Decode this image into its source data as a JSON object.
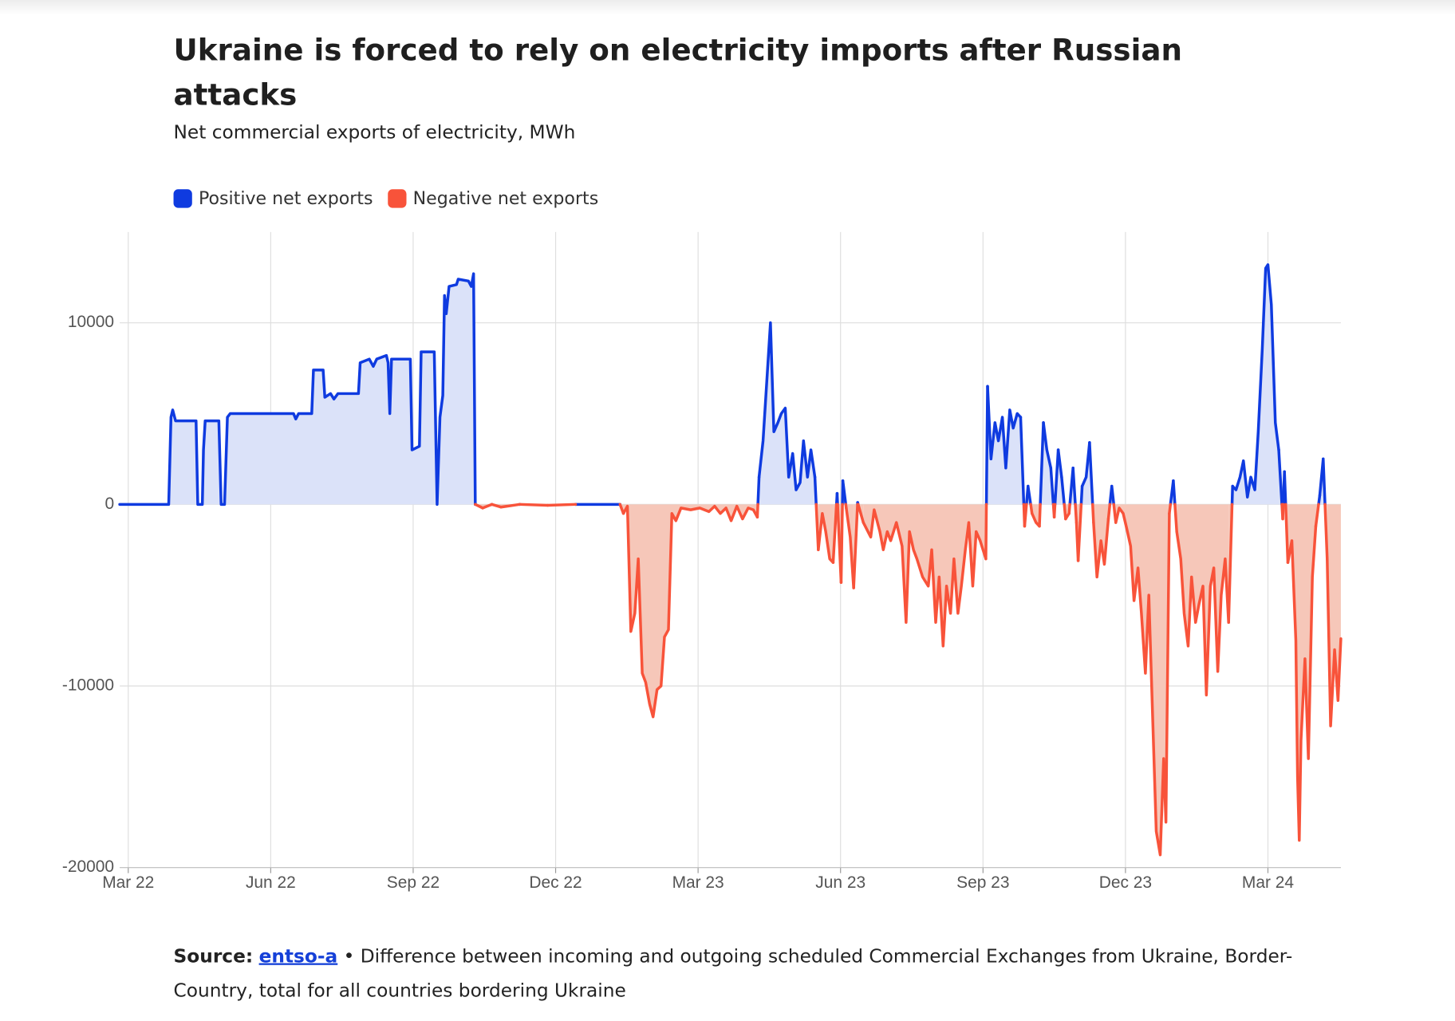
{
  "chart_data": {
    "type": "area",
    "title": "Ukraine is forced to rely on electricity imports after Russian attacks",
    "subtitle": "Net commercial exports of electricity, MWh",
    "source_label": "Source:",
    "source_link": "entso-a",
    "note": "• Difference between incoming and outgoing scheduled Commercial Exchanges from Ukraine, Border-Country, total for all countries bordering Ukraine",
    "xlim": [
      2022.152,
      2024.295
    ],
    "xticks": [
      {
        "value": 2022.167,
        "label": "Mar 22"
      },
      {
        "value": 2022.417,
        "label": "Jun 22"
      },
      {
        "value": 2022.667,
        "label": "Sep 22"
      },
      {
        "value": 2022.917,
        "label": "Dec 22"
      },
      {
        "value": 2023.167,
        "label": "Mar 23"
      },
      {
        "value": 2023.417,
        "label": "Jun 23"
      },
      {
        "value": 2023.667,
        "label": "Sep 23"
      },
      {
        "value": 2023.917,
        "label": "Dec 23"
      },
      {
        "value": 2024.167,
        "label": "Mar 24"
      }
    ],
    "ylim": [
      -20000,
      15000
    ],
    "yticks": [
      -20000,
      -10000,
      0,
      10000
    ],
    "grid": true,
    "legend": "top-left",
    "x": [
      2022.152,
      2022.238,
      2022.242,
      2022.245,
      2022.25,
      2022.286,
      2022.289,
      2022.297,
      2022.299,
      2022.302,
      2022.326,
      2022.33,
      2022.336,
      2022.341,
      2022.346,
      2022.457,
      2022.461,
      2022.466,
      2022.489,
      2022.492,
      2022.509,
      2022.512,
      2022.522,
      2022.528,
      2022.535,
      2022.571,
      2022.574,
      2022.59,
      2022.597,
      2022.603,
      2022.62,
      2022.623,
      2022.626,
      2022.629,
      2022.662,
      2022.665,
      2022.678,
      2022.681,
      2022.704,
      2022.709,
      2022.714,
      2022.719,
      2022.722,
      2022.725,
      2022.73,
      2022.743,
      2022.746,
      2022.764,
      2022.769,
      2022.773,
      2022.776,
      2022.789,
      2022.805,
      2022.821,
      2022.854,
      2022.903,
      2022.952,
      2023.03,
      2023.036,
      2023.043,
      2023.049,
      2023.056,
      2023.062,
      2023.069,
      2023.075,
      2023.082,
      2023.088,
      2023.095,
      2023.102,
      2023.108,
      2023.115,
      2023.121,
      2023.128,
      2023.137,
      2023.154,
      2023.17,
      2023.186,
      2023.196,
      2023.206,
      2023.216,
      2023.225,
      2023.235,
      2023.245,
      2023.255,
      2023.264,
      2023.271,
      2023.274,
      2023.281,
      2023.287,
      2023.294,
      2023.3,
      2023.307,
      2023.313,
      2023.32,
      2023.326,
      2023.333,
      2023.339,
      2023.346,
      2023.352,
      2023.359,
      2023.365,
      2023.372,
      2023.378,
      2023.385,
      2023.391,
      2023.398,
      2023.404,
      2023.411,
      2023.418,
      2023.421,
      2023.427,
      2023.434,
      2023.44,
      2023.447,
      2023.457,
      2023.47,
      2023.476,
      2023.486,
      2023.492,
      2023.499,
      2023.505,
      2023.515,
      2023.525,
      2023.532,
      2023.538,
      2023.545,
      2023.551,
      2023.561,
      2023.571,
      2023.577,
      2023.584,
      2023.59,
      2023.597,
      2023.603,
      2023.61,
      2023.616,
      2023.623,
      2023.629,
      2023.636,
      2023.642,
      2023.649,
      2023.655,
      2023.662,
      2023.672,
      2023.675,
      2023.681,
      2023.688,
      2023.694,
      2023.701,
      2023.707,
      2023.714,
      2023.72,
      2023.727,
      2023.733,
      2023.74,
      2023.746,
      2023.753,
      2023.76,
      2023.766,
      2023.773,
      2023.779,
      2023.786,
      2023.792,
      2023.799,
      2023.805,
      2023.812,
      2023.818,
      2023.825,
      2023.831,
      2023.834,
      2023.841,
      2023.848,
      2023.854,
      2023.861,
      2023.867,
      2023.874,
      2023.88,
      2023.887,
      2023.893,
      2023.9,
      2023.906,
      2023.913,
      2023.919,
      2023.926,
      2023.932,
      2023.939,
      2023.945,
      2023.952,
      2023.958,
      2023.965,
      2023.971,
      2023.978,
      2023.984,
      2023.988,
      2023.994,
      2024.001,
      2024.007,
      2024.014,
      2024.02,
      2024.027,
      2024.033,
      2024.04,
      2024.046,
      2024.053,
      2024.059,
      2024.066,
      2024.072,
      2024.079,
      2024.085,
      2024.092,
      2024.098,
      2024.105,
      2024.111,
      2024.118,
      2024.124,
      2024.131,
      2024.137,
      2024.144,
      2024.15,
      2024.157,
      2024.163,
      2024.167,
      2024.173,
      2024.18,
      2024.186,
      2024.193,
      2024.196,
      2024.202,
      2024.209,
      2024.216,
      2024.219,
      2024.222,
      2024.225,
      2024.232,
      2024.238,
      2024.245,
      2024.251,
      2024.258,
      2024.264,
      2024.271,
      2024.277,
      2024.284,
      2024.29,
      2024.295
    ],
    "series": [
      {
        "name": "Positive net exports",
        "color": "#0f3be0",
        "fill": "#dbe2f9",
        "values": [
          0,
          0,
          4800,
          5200,
          4600,
          4600,
          0,
          0,
          3000,
          4600,
          4600,
          0,
          0,
          4800,
          5000,
          5000,
          4700,
          5000,
          5000,
          7400,
          7400,
          5900,
          6100,
          5800,
          6100,
          6100,
          7800,
          8000,
          7600,
          8000,
          8200,
          7800,
          5000,
          8000,
          8000,
          3000,
          3200,
          8400,
          8400,
          0,
          4800,
          6000,
          11500,
          10500,
          12000,
          12100,
          12400,
          12300,
          12000,
          12700,
          0,
          null,
          0,
          null,
          0,
          null,
          0,
          0,
          null,
          null,
          null,
          null,
          null,
          null,
          null,
          null,
          null,
          null,
          null,
          null,
          null,
          null,
          null,
          null,
          null,
          null,
          null,
          null,
          null,
          null,
          null,
          null,
          null,
          null,
          null,
          null,
          1500,
          3500,
          6500,
          10000,
          4000,
          4500,
          5000,
          5300,
          1500,
          2800,
          800,
          1200,
          3500,
          1500,
          3000,
          1500,
          null,
          null,
          null,
          null,
          null,
          600,
          null,
          1300,
          null,
          null,
          null,
          100,
          null,
          null,
          null,
          null,
          null,
          null,
          null,
          null,
          null,
          null,
          null,
          null,
          null,
          null,
          null,
          null,
          null,
          null,
          null,
          null,
          null,
          null,
          null,
          null,
          null,
          null,
          null,
          null,
          null,
          null,
          6500,
          2500,
          4500,
          3500,
          4800,
          2000,
          5200,
          4200,
          5000,
          4800,
          null,
          1000,
          null,
          null,
          null,
          4500,
          3000,
          2000,
          null,
          3000,
          1500,
          null,
          null,
          2000,
          null,
          null,
          1000,
          1500,
          3400,
          null,
          null,
          null,
          null,
          null,
          1000,
          null,
          null,
          null,
          null,
          null,
          null,
          null,
          null,
          null,
          null,
          null,
          null,
          null,
          null,
          null,
          null,
          1300,
          null,
          null,
          null,
          null,
          null,
          null,
          null,
          null,
          null,
          null,
          null,
          null,
          null,
          null,
          null,
          1000,
          800,
          1500,
          2400,
          400,
          1500,
          800,
          4000,
          8500,
          13000,
          13200,
          11000,
          4500,
          3000,
          null,
          1800,
          null,
          null,
          null,
          null,
          null,
          null,
          null,
          null,
          null,
          null,
          500,
          2500,
          null,
          null,
          null,
          null,
          null
        ]
      },
      {
        "name": "Negative net exports",
        "color": "#f8533a",
        "fill": "#f6c7b9",
        "values": [
          null,
          null,
          null,
          null,
          null,
          null,
          null,
          null,
          null,
          null,
          null,
          null,
          null,
          null,
          null,
          null,
          null,
          null,
          null,
          null,
          null,
          null,
          null,
          null,
          null,
          null,
          null,
          null,
          null,
          null,
          null,
          null,
          null,
          null,
          null,
          null,
          null,
          null,
          null,
          null,
          null,
          null,
          null,
          null,
          null,
          null,
          null,
          null,
          null,
          null,
          null,
          -200,
          null,
          -150,
          null,
          -50,
          null,
          null,
          -500,
          -100,
          -7000,
          -6000,
          -3000,
          -9300,
          -9800,
          -11000,
          -11700,
          -10200,
          -10000,
          -7300,
          -6900,
          -500,
          -900,
          -200,
          -300,
          -200,
          -400,
          -100,
          -500,
          -200,
          -900,
          -100,
          -800,
          -200,
          -300,
          -700,
          null,
          null,
          null,
          null,
          null,
          null,
          null,
          null,
          null,
          null,
          null,
          null,
          null,
          null,
          null,
          null,
          -2500,
          -500,
          -1500,
          -3000,
          -3200,
          null,
          -4300,
          null,
          -200,
          -1800,
          -4600,
          null,
          -1000,
          -1800,
          -300,
          -1500,
          -2500,
          -1500,
          -2000,
          -1000,
          -2300,
          -6500,
          -1500,
          -2500,
          -3000,
          -4000,
          -4500,
          -2500,
          -6500,
          -4000,
          -7800,
          -4500,
          -6000,
          -3000,
          -6000,
          -4500,
          -2500,
          -1000,
          -4500,
          -1500,
          -2000,
          -3000,
          null,
          null,
          null,
          null,
          null,
          null,
          null,
          null,
          null,
          null,
          -1200,
          null,
          -500,
          -1000,
          -1200,
          null,
          null,
          null,
          -700,
          null,
          null,
          -800,
          -500,
          null,
          -1000,
          -3100,
          null,
          null,
          null,
          -1000,
          -4000,
          -2000,
          -3300,
          -800,
          null,
          -1000,
          -200,
          -500,
          -1300,
          -2300,
          -5300,
          -3500,
          -6000,
          -9300,
          -5000,
          -12000,
          -18000,
          -19300,
          -14000,
          -17500,
          -500,
          null,
          -1500,
          -3000,
          -6000,
          -7800,
          -4000,
          -6500,
          -5500,
          -4500,
          -10500,
          -4500,
          -3500,
          -9200,
          -5000,
          -3000,
          -6500,
          null,
          null,
          null,
          null,
          null,
          null,
          null,
          null,
          null,
          null,
          null,
          null,
          null,
          null,
          -800,
          null,
          -3200,
          -2000,
          -7500,
          -15000,
          -18500,
          -13000,
          -8500,
          -14000,
          -4000,
          -1200,
          null,
          null,
          -3000,
          -12200,
          -8000,
          -10800,
          -7400
        ]
      }
    ]
  }
}
